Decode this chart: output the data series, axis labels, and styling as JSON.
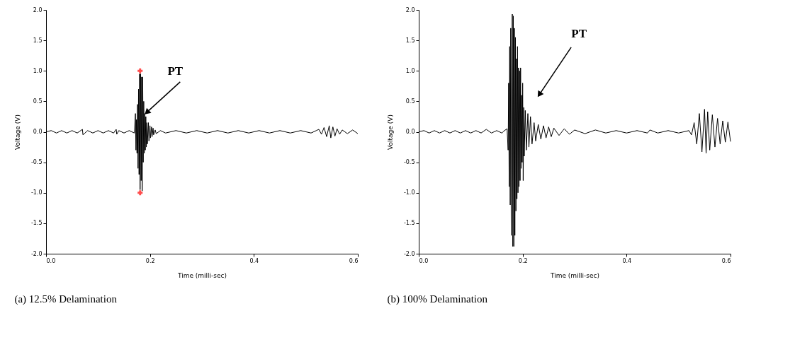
{
  "chart_data": [
    {
      "type": "line",
      "title": "(a)  12.5% Delamination",
      "xlabel": "Time (milli-sec)",
      "ylabel": "Voltage (V)",
      "xlim": [
        0,
        0.6
      ],
      "ylim": [
        -2,
        2
      ],
      "xticks": [
        {
          "value": 0,
          "label": "0.0"
        },
        0.2,
        0.4,
        0.6
      ],
      "yticks": [
        {
          "value": -2,
          "label": "-2.0"
        },
        -1.5,
        {
          "value": -1,
          "label": "-1.0"
        },
        -0.5,
        {
          "value": 0,
          "label": "0.0"
        },
        0.5,
        {
          "value": 1,
          "label": "1.0"
        },
        1.5,
        {
          "value": 2,
          "label": "2.0"
        }
      ],
      "annotations": [
        {
          "text": "PT",
          "x": 0.194,
          "y": 0.32
        }
      ],
      "series": [
        {
          "color": "#000000",
          "x": [
            0,
            0.01,
            0.02,
            0.03,
            0.04,
            0.05,
            0.06,
            0.07,
            0.071,
            0.08,
            0.09,
            0.1,
            0.11,
            0.12,
            0.13,
            0.135,
            0.136,
            0.14,
            0.15,
            0.16,
            0.17,
            0.172,
            0.173,
            0.174,
            0.175,
            0.176,
            0.177,
            0.178,
            0.179,
            0.18,
            0.181,
            0.182,
            0.183,
            0.184,
            0.185,
            0.186,
            0.187,
            0.188,
            0.189,
            0.19,
            0.191,
            0.192,
            0.193,
            0.194,
            0.195,
            0.197,
            0.198,
            0.2,
            0.201,
            0.203,
            0.204,
            0.206,
            0.207,
            0.21,
            0.212,
            0.22,
            0.23,
            0.25,
            0.27,
            0.29,
            0.31,
            0.33,
            0.35,
            0.37,
            0.39,
            0.41,
            0.43,
            0.45,
            0.47,
            0.49,
            0.51,
            0.52,
            0.525,
            0.53,
            0.535,
            0.54,
            0.545,
            0.548,
            0.552,
            0.556,
            0.56,
            0.565,
            0.57,
            0.58,
            0.59,
            0.6
          ],
          "values": [
            0,
            0.02,
            -0.02,
            0.02,
            -0.02,
            0.02,
            -0.02,
            0.04,
            -0.05,
            0.02,
            -0.02,
            0.02,
            -0.02,
            0.02,
            -0.02,
            0.04,
            -0.04,
            0.02,
            -0.02,
            0.02,
            -0.02,
            0.3,
            -0.3,
            0.2,
            -0.35,
            0.45,
            -0.6,
            0.7,
            -0.7,
            0.95,
            -0.95,
            0.95,
            -0.8,
            0.9,
            -0.97,
            0.9,
            -0.5,
            0.5,
            -0.35,
            0.3,
            -0.3,
            0.25,
            -0.25,
            0.15,
            -0.2,
            0.15,
            -0.15,
            0.1,
            -0.1,
            0.08,
            -0.08,
            0.06,
            -0.05,
            0.03,
            -0.03,
            0.02,
            -0.02,
            0.02,
            -0.02,
            0.02,
            -0.02,
            0.02,
            -0.02,
            0.02,
            -0.02,
            0.02,
            -0.02,
            0.02,
            -0.02,
            0.02,
            -0.02,
            0.02,
            0.04,
            -0.04,
            0.07,
            -0.08,
            0.1,
            -0.1,
            0.08,
            -0.07,
            0.05,
            -0.04,
            0.03,
            -0.03,
            0.03,
            -0.03
          ]
        },
        {
          "type": "scatter",
          "color": "#ff0000",
          "marker": "cross",
          "x": [
            0.181,
            0.181
          ],
          "values": [
            1,
            -1
          ]
        }
      ]
    },
    {
      "type": "line",
      "title": "(b)  100% Delamination",
      "xlabel": "Time (milli-sec)",
      "ylabel": "Voltage (V)",
      "xlim": [
        0,
        0.6
      ],
      "ylim": [
        -2,
        2
      ],
      "xticks": [
        {
          "value": 0,
          "label": "0.0"
        },
        0.2,
        0.4,
        0.6
      ],
      "yticks": [
        {
          "value": -2,
          "label": "-2.0"
        },
        -1.5,
        {
          "value": -1,
          "label": "-1.0"
        },
        -0.5,
        {
          "value": 0,
          "label": "0.0"
        },
        0.5,
        {
          "value": 1,
          "label": "1.0"
        },
        1.5,
        {
          "value": 2,
          "label": "2.0"
        }
      ],
      "annotations": [
        {
          "text": "PT",
          "x": 0.232,
          "y": 0.61
        }
      ],
      "series": [
        {
          "color": "#000000",
          "x": [
            0,
            0.01,
            0.02,
            0.03,
            0.04,
            0.05,
            0.06,
            0.07,
            0.08,
            0.09,
            0.1,
            0.11,
            0.12,
            0.13,
            0.14,
            0.15,
            0.16,
            0.165,
            0.17,
            0.172,
            0.173,
            0.174,
            0.175,
            0.176,
            0.177,
            0.178,
            0.18,
            0.181,
            0.182,
            0.183,
            0.184,
            0.185,
            0.186,
            0.187,
            0.188,
            0.189,
            0.19,
            0.191,
            0.192,
            0.193,
            0.194,
            0.195,
            0.196,
            0.197,
            0.198,
            0.199,
            0.2,
            0.201,
            0.202,
            0.203,
            0.205,
            0.207,
            0.21,
            0.212,
            0.215,
            0.218,
            0.222,
            0.225,
            0.23,
            0.235,
            0.24,
            0.245,
            0.25,
            0.255,
            0.26,
            0.27,
            0.28,
            0.29,
            0.3,
            0.32,
            0.34,
            0.36,
            0.38,
            0.4,
            0.42,
            0.44,
            0.445,
            0.46,
            0.48,
            0.5,
            0.52,
            0.525,
            0.53,
            0.535,
            0.54,
            0.545,
            0.55,
            0.553,
            0.556,
            0.56,
            0.565,
            0.57,
            0.575,
            0.58,
            0.585,
            0.59,
            0.595,
            0.6
          ],
          "values": [
            0,
            0.02,
            -0.02,
            0.02,
            -0.02,
            0.02,
            -0.02,
            0.02,
            -0.02,
            0.02,
            -0.02,
            0.02,
            -0.02,
            0.04,
            -0.02,
            0.02,
            -0.02,
            0.02,
            0.05,
            -0.3,
            0.8,
            -0.9,
            1.4,
            -1.2,
            1.7,
            -1.7,
            1.93,
            -1.88,
            1.9,
            -1.88,
            1.7,
            -1.7,
            1.55,
            -1.3,
            1.2,
            -1.1,
            1.4,
            -1.0,
            1.05,
            -0.9,
            1.0,
            -0.8,
            1.05,
            -0.6,
            0.6,
            -0.5,
            0.8,
            -0.8,
            0.4,
            -0.4,
            0.35,
            -0.3,
            0.3,
            -0.25,
            0.25,
            -0.2,
            0.15,
            -0.15,
            0.12,
            -0.12,
            0.1,
            -0.1,
            0.08,
            -0.08,
            0.06,
            -0.06,
            0.05,
            -0.04,
            0.03,
            -0.03,
            0.03,
            -0.02,
            0.02,
            -0.02,
            0.02,
            -0.02,
            0.03,
            -0.02,
            0.02,
            -0.02,
            0.02,
            -0.05,
            0.15,
            -0.2,
            0.3,
            -0.33,
            0.37,
            -0.35,
            0.33,
            -0.3,
            0.28,
            -0.25,
            0.22,
            -0.2,
            0.18,
            -0.17,
            0.16,
            -0.16
          ]
        }
      ]
    }
  ]
}
